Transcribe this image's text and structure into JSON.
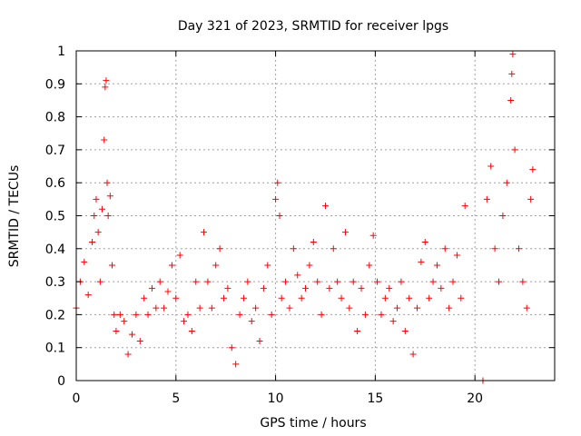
{
  "chart_data": {
    "type": "scatter",
    "title": "Day 321 of 2023, SRMTID for receiver lpgs",
    "xlabel": "GPS time / hours",
    "ylabel": "SRMTID / TECUs",
    "xlim": [
      0,
      24
    ],
    "ylim": [
      0,
      1
    ],
    "xticks": [
      0,
      5,
      10,
      15,
      20
    ],
    "xtick_labels": [
      "0",
      "5",
      "10",
      "15",
      "20"
    ],
    "yticks": [
      0,
      0.1,
      0.2,
      0.3,
      0.4,
      0.5,
      0.6,
      0.7,
      0.8,
      0.9,
      1
    ],
    "ytick_labels": [
      "0",
      "0.1",
      "0.2",
      "0.3",
      "0.4",
      "0.5",
      "0.6",
      "0.7",
      "0.8",
      "0.9",
      "1"
    ],
    "grid": true,
    "marker": "plus",
    "color": "#ff0000",
    "series": [
      {
        "name": "SRMTID",
        "x": [
          0.0,
          0.2,
          0.4,
          0.6,
          0.8,
          0.9,
          1.0,
          1.1,
          1.2,
          1.3,
          1.4,
          1.45,
          1.5,
          1.55,
          1.6,
          1.7,
          1.8,
          1.9,
          2.0,
          2.2,
          2.4,
          2.6,
          2.8,
          3.0,
          3.2,
          3.4,
          3.6,
          3.8,
          4.0,
          4.2,
          4.4,
          4.6,
          4.8,
          5.0,
          5.2,
          5.4,
          5.6,
          5.8,
          6.0,
          6.2,
          6.4,
          6.6,
          6.8,
          7.0,
          7.2,
          7.4,
          7.6,
          7.8,
          8.0,
          8.2,
          8.4,
          8.6,
          8.8,
          9.0,
          9.2,
          9.4,
          9.6,
          9.8,
          10.0,
          10.1,
          10.2,
          10.3,
          10.5,
          10.7,
          10.9,
          11.1,
          11.3,
          11.5,
          11.7,
          11.9,
          12.1,
          12.3,
          12.5,
          12.7,
          12.9,
          13.1,
          13.3,
          13.5,
          13.7,
          13.9,
          14.1,
          14.3,
          14.5,
          14.7,
          14.9,
          15.1,
          15.3,
          15.5,
          15.7,
          15.9,
          16.1,
          16.3,
          16.5,
          16.7,
          16.9,
          17.1,
          17.3,
          17.5,
          17.7,
          17.9,
          18.1,
          18.3,
          18.5,
          18.7,
          18.9,
          19.1,
          19.3,
          19.5,
          20.4,
          20.6,
          20.8,
          21.0,
          21.2,
          21.4,
          21.6,
          21.8,
          21.85,
          21.9,
          22.0,
          22.2,
          22.4,
          22.6,
          22.8,
          22.9
        ],
        "y": [
          0.22,
          0.3,
          0.36,
          0.26,
          0.42,
          0.5,
          0.55,
          0.45,
          0.3,
          0.52,
          0.73,
          0.89,
          0.91,
          0.6,
          0.5,
          0.56,
          0.35,
          0.2,
          0.15,
          0.2,
          0.18,
          0.08,
          0.14,
          0.2,
          0.12,
          0.25,
          0.2,
          0.28,
          0.22,
          0.3,
          0.22,
          0.27,
          0.35,
          0.25,
          0.38,
          0.18,
          0.2,
          0.15,
          0.3,
          0.22,
          0.45,
          0.3,
          0.22,
          0.35,
          0.4,
          0.25,
          0.28,
          0.1,
          0.05,
          0.2,
          0.25,
          0.3,
          0.18,
          0.22,
          0.12,
          0.28,
          0.35,
          0.2,
          0.55,
          0.6,
          0.5,
          0.25,
          0.3,
          0.22,
          0.4,
          0.32,
          0.25,
          0.28,
          0.35,
          0.42,
          0.3,
          0.2,
          0.53,
          0.28,
          0.4,
          0.3,
          0.25,
          0.45,
          0.22,
          0.3,
          0.15,
          0.28,
          0.2,
          0.35,
          0.44,
          0.3,
          0.2,
          0.25,
          0.28,
          0.18,
          0.22,
          0.3,
          0.15,
          0.25,
          0.08,
          0.22,
          0.36,
          0.42,
          0.25,
          0.3,
          0.35,
          0.28,
          0.4,
          0.22,
          0.3,
          0.38,
          0.25,
          0.53,
          0.0,
          0.55,
          0.65,
          0.4,
          0.3,
          0.5,
          0.6,
          0.85,
          0.93,
          0.99,
          0.7,
          0.4,
          0.3,
          0.22,
          0.55,
          0.64
        ]
      }
    ]
  }
}
